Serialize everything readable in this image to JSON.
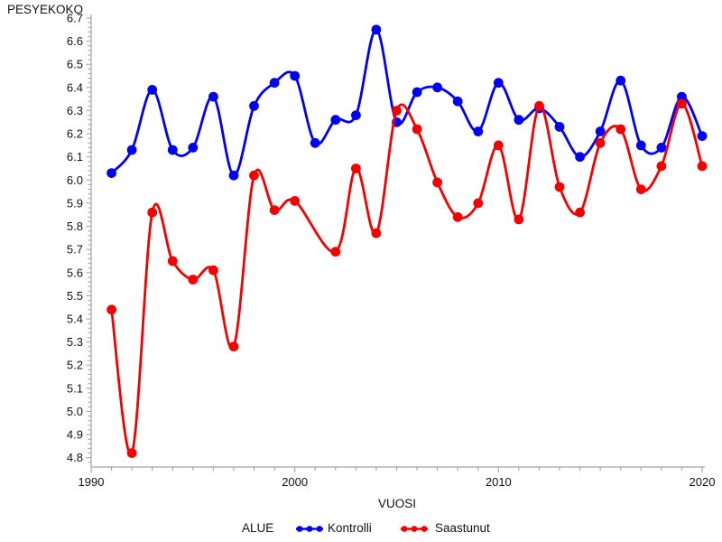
{
  "chart_data": {
    "type": "line",
    "title": "",
    "ylabel": "PESYEKOKO",
    "xlabel": "VUOSI",
    "legend_title": "ALUE",
    "legend_position": "bottom",
    "grid": false,
    "interpolation": "spline",
    "x": [
      1991,
      1992,
      1993,
      1994,
      1995,
      1996,
      1997,
      1998,
      1999,
      2000,
      2001,
      2002,
      2003,
      2004,
      2005,
      2006,
      2007,
      2008,
      2009,
      2010,
      2011,
      2012,
      2013,
      2014,
      2015,
      2016,
      2017,
      2018,
      2019,
      2020
    ],
    "series": [
      {
        "name": "Kontrolli",
        "color": "#0000F5",
        "values": [
          6.03,
          6.13,
          6.39,
          6.13,
          6.14,
          6.36,
          6.02,
          6.32,
          6.42,
          6.45,
          6.16,
          6.26,
          6.28,
          6.65,
          6.25,
          6.38,
          6.4,
          6.34,
          6.21,
          6.42,
          6.26,
          6.31,
          6.23,
          6.1,
          6.21,
          6.43,
          6.15,
          6.14,
          6.36,
          6.19
        ]
      },
      {
        "name": "Saastunut",
        "color": "#F50000",
        "values": [
          5.44,
          4.82,
          5.86,
          5.65,
          5.57,
          5.61,
          5.28,
          6.02,
          5.87,
          5.91,
          null,
          5.69,
          6.05,
          5.77,
          6.3,
          6.22,
          5.99,
          5.84,
          5.9,
          6.15,
          5.83,
          6.32,
          5.97,
          5.86,
          6.16,
          6.22,
          5.96,
          6.06,
          6.33,
          6.06
        ]
      }
    ],
    "xaxis": {
      "min": 1990,
      "max": 2020,
      "minor_tick_step": 1,
      "major_tick_step": 10,
      "tick_labels": [
        "1990",
        "2000",
        "2010",
        "2020"
      ]
    },
    "yaxis": {
      "min": 4.8,
      "max": 6.7,
      "minor_tick_step": 0.02,
      "major_tick_step": 0.1,
      "tick_labels": [
        "4.8",
        "4.9",
        "5.0",
        "5.1",
        "5.2",
        "5.3",
        "5.4",
        "5.5",
        "5.6",
        "5.7",
        "5.8",
        "5.9",
        "6.0",
        "6.1",
        "6.2",
        "6.3",
        "6.4",
        "6.5",
        "6.6",
        "6.7"
      ]
    },
    "axis_color": "#a3a3a3",
    "text_color": "#111111"
  }
}
